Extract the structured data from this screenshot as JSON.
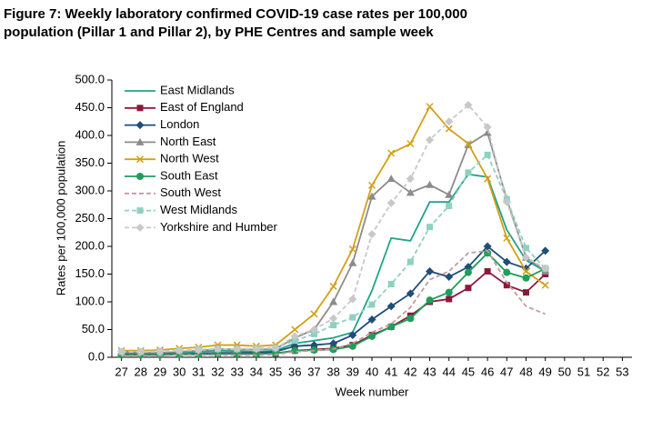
{
  "chart_data": {
    "type": "line",
    "title": [
      "Figure 7: Weekly laboratory confirmed COVID-19 case rates per 100,000",
      "population (Pillar 1 and Pillar 2), by PHE Centres and sample week"
    ],
    "x_label": "Week number",
    "y_label": "Rates per 100,000 population",
    "x": [
      27,
      28,
      29,
      30,
      31,
      32,
      33,
      34,
      35,
      36,
      37,
      38,
      39,
      40,
      41,
      42,
      43,
      44,
      45,
      46,
      47,
      48,
      49,
      50,
      51,
      52,
      53
    ],
    "xlim": [
      26.5,
      53.5
    ],
    "xticks": [
      27,
      28,
      29,
      30,
      31,
      32,
      33,
      34,
      35,
      36,
      37,
      38,
      39,
      40,
      41,
      42,
      43,
      44,
      45,
      46,
      47,
      48,
      49,
      50,
      51,
      52,
      53
    ],
    "ylim": [
      0,
      500
    ],
    "yticks": [
      {
        "value": 0,
        "label": "0.0"
      },
      {
        "value": 50,
        "label": "50.0"
      },
      {
        "value": 100,
        "label": "100.0"
      },
      {
        "value": 150,
        "label": "150.0"
      },
      {
        "value": 200,
        "label": "200.0"
      },
      {
        "value": 250,
        "label": "250.0"
      },
      {
        "value": 300,
        "label": "300.0"
      },
      {
        "value": 350,
        "label": "350.0"
      },
      {
        "value": 400,
        "label": "400.0"
      },
      {
        "value": 450,
        "label": "450.0"
      },
      {
        "value": 500,
        "label": "500.0"
      }
    ],
    "grid": false,
    "legend": "top-left",
    "series": [
      {
        "name": "East Midlands",
        "color": "#1fa38a",
        "marker": "none",
        "dash": false,
        "values": [
          10,
          8,
          8,
          9,
          10,
          12,
          11,
          10,
          12,
          25,
          30,
          35,
          45,
          120,
          215,
          210,
          280,
          280,
          330,
          325,
          230,
          175,
          155,
          null,
          null,
          null,
          null
        ]
      },
      {
        "name": "East of England",
        "color": "#8b1a3a",
        "marker": "square",
        "dash": false,
        "values": [
          5,
          5,
          5,
          6,
          6,
          7,
          6,
          6,
          7,
          12,
          14,
          16,
          22,
          40,
          55,
          75,
          100,
          105,
          125,
          155,
          130,
          117,
          150,
          null,
          null,
          null,
          null
        ]
      },
      {
        "name": "London",
        "color": "#1f4e79",
        "marker": "diamond",
        "dash": false,
        "values": [
          5,
          5,
          6,
          6,
          7,
          8,
          8,
          8,
          10,
          20,
          22,
          25,
          40,
          68,
          92,
          115,
          155,
          145,
          163,
          200,
          172,
          160,
          192,
          null,
          null,
          null,
          null
        ]
      },
      {
        "name": "North East",
        "color": "#8c8c8c",
        "marker": "triangle",
        "dash": false,
        "values": [
          8,
          8,
          8,
          10,
          12,
          15,
          14,
          14,
          15,
          35,
          50,
          100,
          170,
          290,
          322,
          297,
          311,
          293,
          383,
          405,
          285,
          180,
          155,
          null,
          null,
          null,
          null
        ]
      },
      {
        "name": "North West",
        "color": "#d4a017",
        "marker": "x",
        "dash": false,
        "values": [
          12,
          12,
          13,
          16,
          18,
          22,
          22,
          20,
          22,
          50,
          78,
          128,
          195,
          310,
          368,
          385,
          452,
          412,
          385,
          322,
          215,
          155,
          130,
          null,
          null,
          null,
          null
        ]
      },
      {
        "name": "South East",
        "color": "#1e9e5a",
        "marker": "circle",
        "dash": false,
        "values": [
          4,
          4,
          4,
          5,
          5,
          6,
          6,
          6,
          7,
          12,
          13,
          14,
          20,
          38,
          55,
          70,
          103,
          117,
          153,
          188,
          153,
          143,
          160,
          null,
          null,
          null,
          null
        ]
      },
      {
        "name": "South West",
        "color": "#c49a9e",
        "marker": "none",
        "dash": true,
        "values": [
          3,
          3,
          3,
          4,
          4,
          4,
          4,
          4,
          5,
          10,
          12,
          15,
          25,
          45,
          60,
          90,
          140,
          155,
          188,
          192,
          135,
          92,
          78,
          null,
          null,
          null,
          null
        ]
      },
      {
        "name": "West Midlands",
        "color": "#8fd1c0",
        "marker": "square",
        "dash": true,
        "values": [
          10,
          10,
          10,
          12,
          14,
          15,
          15,
          16,
          17,
          30,
          42,
          58,
          72,
          95,
          132,
          172,
          235,
          273,
          333,
          365,
          285,
          197,
          160,
          null,
          null,
          null,
          null
        ]
      },
      {
        "name": "Yorkshire and Humber",
        "color": "#c8c8c8",
        "marker": "diamond",
        "dash": true,
        "values": [
          10,
          10,
          11,
          12,
          13,
          15,
          15,
          15,
          16,
          38,
          50,
          70,
          105,
          222,
          278,
          322,
          392,
          425,
          455,
          415,
          280,
          180,
          160,
          null,
          null,
          null,
          null
        ]
      }
    ]
  }
}
